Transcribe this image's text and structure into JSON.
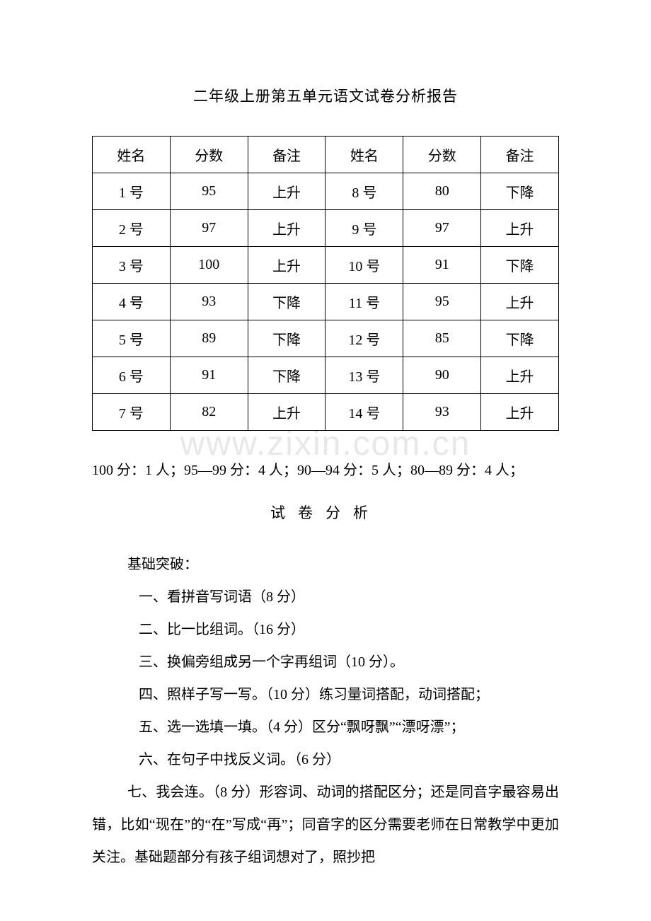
{
  "title": "二年级上册第五单元语文试卷分析报告",
  "table": {
    "headers": [
      "姓名",
      "分数",
      "备注",
      "姓名",
      "分数",
      "备注"
    ],
    "rows": [
      [
        "1 号",
        "95",
        "上升",
        "8 号",
        "80",
        "下降"
      ],
      [
        "2 号",
        "97",
        "上升",
        "9 号",
        "97",
        "上升"
      ],
      [
        "3 号",
        "100",
        "上升",
        "10 号",
        "91",
        "下降"
      ],
      [
        "4 号",
        "93",
        "下降",
        "11 号",
        "95",
        "上升"
      ],
      [
        "5 号",
        "89",
        "下降",
        "12 号",
        "85",
        "下降"
      ],
      [
        "6 号",
        "91",
        "下降",
        "13 号",
        "90",
        "上升"
      ],
      [
        "7 号",
        "82",
        "上升",
        "14 号",
        "93",
        "上升"
      ]
    ]
  },
  "summary": "100 分：1 人；95—99 分：4 人；90—94 分：5 人；80—89 分：4 人；",
  "analysisTitle": "试卷分析",
  "sections": {
    "heading": "基础突破：",
    "items": [
      "一、看拼音写词语（8 分）",
      "二、比一比组词。（16 分）",
      "三、换偏旁组成另一个字再组词（10 分）。",
      "四、照样子写一写。（10 分）练习量词搭配，动词搭配；",
      "五、选一选填一填。（4 分）区分“飘呀飘”“漂呀漂”；",
      "六、在句子中找反义词。（6 分）"
    ],
    "paragraph": "七、我会连。（8 分）形容词、动词的搭配区分；还是同音字最容易出错，比如“现在”的“在”写成“再”；同音字的区分需要老师在日常教学中更加关注。基础题部分有孩子组词想对了，照抄把"
  },
  "watermark": "www.zixin.com.cn"
}
